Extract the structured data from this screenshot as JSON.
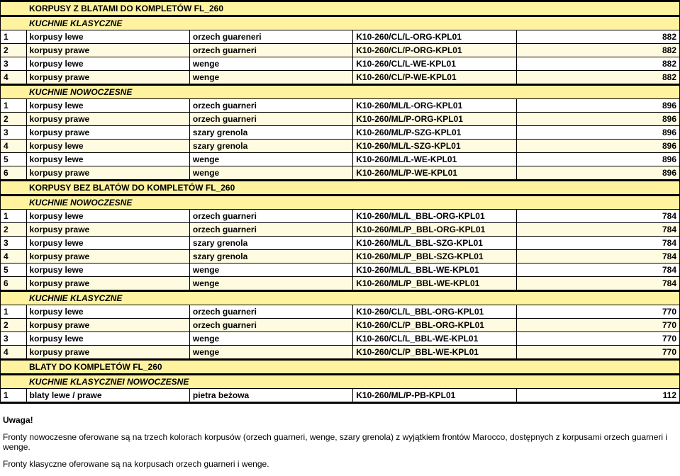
{
  "mainTitle": "KORPUSY Z BLATAMI DO KOMPLETÓW FL_260",
  "sections": [
    {
      "title": "KUCHNIE KLASYCZNE",
      "rows": [
        {
          "n": "1",
          "name": "korpusy lewe",
          "mat": "orzech guareneri",
          "code": "K10-260/CL/L-ORG-KPL01",
          "price": "882"
        },
        {
          "n": "2",
          "name": "korpusy prawe",
          "mat": "orzech guarneri",
          "code": "K10-260/CL/P-ORG-KPL01",
          "price": "882"
        },
        {
          "n": "3",
          "name": "korpusy lewe",
          "mat": "wenge",
          "code": "K10-260/CL/L-WE-KPL01",
          "price": "882"
        },
        {
          "n": "4",
          "name": "korpusy prawe",
          "mat": "wenge",
          "code": "K10-260/CL/P-WE-KPL01",
          "price": "882"
        }
      ]
    },
    {
      "title": "KUCHNIE NOWOCZESNE",
      "rows": [
        {
          "n": "1",
          "name": "korpusy lewe",
          "mat": "orzech guarneri",
          "code": "K10-260/ML/L-ORG-KPL01",
          "price": "896"
        },
        {
          "n": "2",
          "name": "korpusy prawe",
          "mat": "orzech guarneri",
          "code": "K10-260/ML/P-ORG-KPL01",
          "price": "896"
        },
        {
          "n": "3",
          "name": "korpusy prawe",
          "mat": "szary grenola",
          "code": "K10-260/ML/P-SZG-KPL01",
          "price": "896"
        },
        {
          "n": "4",
          "name": "korpusy lewe",
          "mat": "szary grenola",
          "code": "K10-260/ML/L-SZG-KPL01",
          "price": "896"
        },
        {
          "n": "5",
          "name": "korpusy lewe",
          "mat": "wenge",
          "code": "K10-260/ML/L-WE-KPL01",
          "price": "896"
        },
        {
          "n": "6",
          "name": "korpusy prawe",
          "mat": "wenge",
          "code": "K10-260/ML/P-WE-KPL01",
          "price": "896"
        }
      ]
    },
    {
      "majorTitle": "KORPUSY BEZ BLATÓW DO KOMPLETÓW FL_260",
      "title": "KUCHNIE NOWOCZESNE",
      "rows": [
        {
          "n": "1",
          "name": "korpusy lewe",
          "mat": "orzech guarneri",
          "code": "K10-260/ML/L_BBL-ORG-KPL01",
          "price": "784"
        },
        {
          "n": "2",
          "name": "korpusy prawe",
          "mat": "orzech guarneri",
          "code": "K10-260/ML/P_BBL-ORG-KPL01",
          "price": "784"
        },
        {
          "n": "3",
          "name": "korpusy lewe",
          "mat": "szary grenola",
          "code": "K10-260/ML/L_BBL-SZG-KPL01",
          "price": "784"
        },
        {
          "n": "4",
          "name": "korpusy prawe",
          "mat": "szary grenola",
          "code": "K10-260/ML/P_BBL-SZG-KPL01",
          "price": "784"
        },
        {
          "n": "5",
          "name": "korpusy lewe",
          "mat": "wenge",
          "code": "K10-260/ML/L_BBL-WE-KPL01",
          "price": "784"
        },
        {
          "n": "6",
          "name": "korpusy prawe",
          "mat": "wenge",
          "code": "K10-260/ML/P_BBL-WE-KPL01",
          "price": "784"
        }
      ]
    },
    {
      "title": "KUCHNIE KLASYCZNE",
      "rows": [
        {
          "n": "1",
          "name": "korpusy lewe",
          "mat": "orzech guarneri",
          "code": "K10-260/CL/L_BBL-ORG-KPL01",
          "price": "770"
        },
        {
          "n": "2",
          "name": "korpusy prawe",
          "mat": "orzech guarneri",
          "code": "K10-260/CL/P_BBL-ORG-KPL01",
          "price": "770"
        },
        {
          "n": "3",
          "name": "korpusy lewe",
          "mat": "wenge",
          "code": "K10-260/CL/L_BBL-WE-KPL01",
          "price": "770"
        },
        {
          "n": "4",
          "name": "korpusy prawe",
          "mat": "wenge",
          "code": "K10-260/CL/P_BBL-WE-KPL01",
          "price": "770"
        }
      ]
    },
    {
      "majorTitle": "BLATY DO KOMPLETÓW FL_260",
      "title": "KUCHNIE KLASYCZNEI NOWOCZESNE",
      "rows": [
        {
          "n": "1",
          "name": "blaty lewe / prawe",
          "mat": "pietra beżowa",
          "code": "K10-260/ML/P-PB-KPL01",
          "price": "112"
        }
      ]
    }
  ],
  "notes": {
    "heading": "Uwaga!",
    "p1": "Fronty nowoczesne oferowane są na trzech kolorach korpusów (orzech guarneri, wenge, szary grenola) z wyjątkiem frontów Marocco, dostępnych z korpusami orzech guarneri i wenge.",
    "p2": "Fronty klasyczne oferowane są na korpusach orzech guarneri i wenge."
  },
  "style": {
    "headerBg": "#fff3a0",
    "rowAltBg": "#fffbe0",
    "borderColor": "#000000",
    "textColor": "#000000",
    "fontSize": 12
  }
}
